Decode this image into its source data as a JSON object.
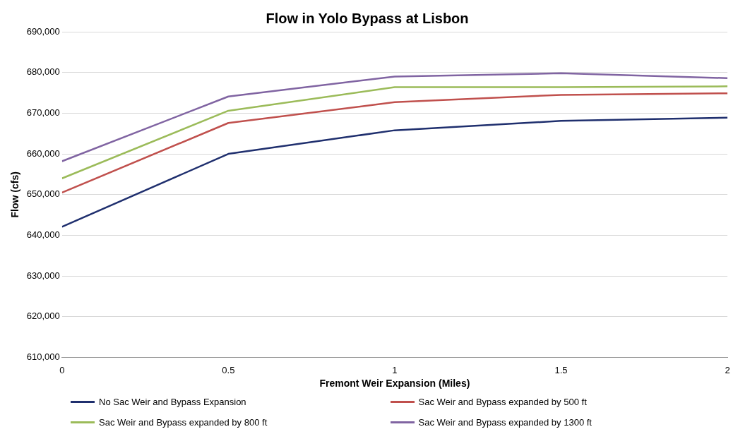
{
  "chart_data": {
    "type": "line",
    "title": "Flow in Yolo Bypass at Lisbon",
    "xlabel": "Fremont Weir Expansion (Miles)",
    "ylabel": "Flow (cfs)",
    "x": [
      0,
      0.5,
      1,
      1.5,
      2
    ],
    "series": [
      {
        "name": "No Sac Weir and Bypass Expansion",
        "color": "#1f2f6e",
        "values": [
          642100,
          660000,
          665800,
          668100,
          668900
        ]
      },
      {
        "name": "Sac Weir and Bypass expanded by 500 ft",
        "color": "#c0504d",
        "values": [
          650500,
          667600,
          672700,
          674500,
          674900
        ]
      },
      {
        "name": "Sac Weir and Bypass expanded by 800 ft",
        "color": "#9bbb59",
        "values": [
          654000,
          670600,
          676400,
          676400,
          676600
        ]
      },
      {
        "name": "Sac Weir and Bypass expanded by 1300 ft",
        "color": "#8064a2",
        "values": [
          658200,
          674100,
          679000,
          679800,
          678600
        ]
      }
    ],
    "xlim": [
      0,
      2
    ],
    "xticks": [
      0,
      0.5,
      1,
      1.5,
      2
    ],
    "ylim": [
      610000,
      690000
    ],
    "yticks": [
      {
        "value": 610000,
        "label": "610,000"
      },
      {
        "value": 620000,
        "label": "620,000"
      },
      {
        "value": 630000,
        "label": "630,000"
      },
      {
        "value": 640000,
        "label": "640,000"
      },
      {
        "value": 650000,
        "label": "650,000"
      },
      {
        "value": 660000,
        "label": "660,000"
      },
      {
        "value": 670000,
        "label": "670,000"
      },
      {
        "value": 680000,
        "label": "680,000"
      },
      {
        "value": 690000,
        "label": "690,000"
      }
    ],
    "grid": "y",
    "legend": "bottom",
    "marker": "none",
    "line_style": "solid"
  }
}
